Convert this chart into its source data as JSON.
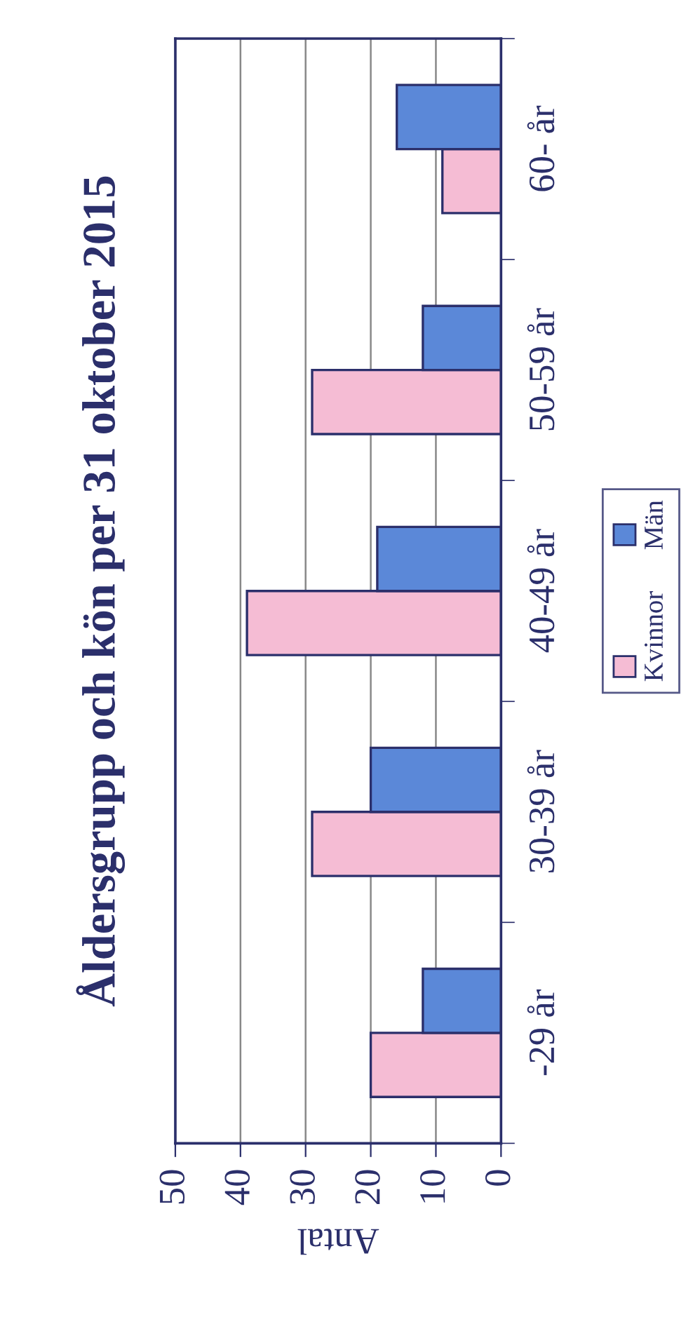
{
  "chart_data": {
    "type": "bar",
    "orientation": "horizontal",
    "title": "Åldersgrupp och kön per 31 oktober 2015",
    "xlabel": "Antal",
    "categories": [
      "60- år",
      "50-59 år",
      "40-49 år",
      "30-39 år",
      "-29 år"
    ],
    "series": [
      {
        "name": "Kvinnor",
        "color": "#f5bcd4",
        "values": [
          9,
          29,
          39,
          29,
          20
        ]
      },
      {
        "name": "Män",
        "color": "#5b88d8",
        "values": [
          16,
          12,
          19,
          20,
          12
        ]
      }
    ],
    "xlim": [
      50,
      0
    ],
    "xticks": [
      50,
      40,
      30,
      20,
      10,
      0
    ],
    "grid": "x",
    "legend": "right"
  }
}
